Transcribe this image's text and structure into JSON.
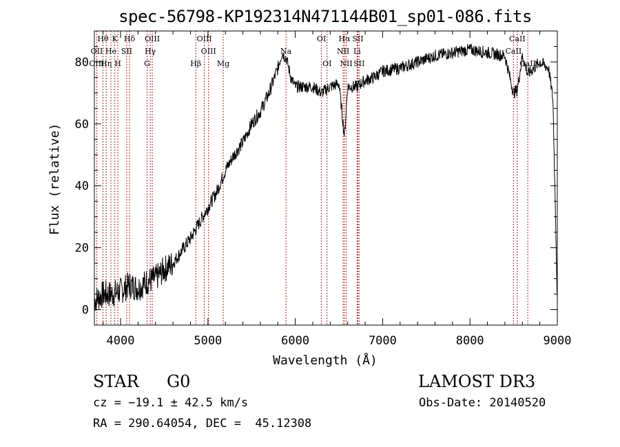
{
  "chart_data": {
    "type": "line",
    "title": "spec-56798-KP192314N471144B01_sp01-086.fits",
    "xlabel": "Wavelength (Å)",
    "ylabel": "Flux (relative)",
    "xlim": [
      3700,
      9000
    ],
    "ylim": [
      -5,
      90
    ],
    "xticks": [
      4000,
      5000,
      6000,
      7000,
      8000,
      9000
    ],
    "yticks": [
      0,
      20,
      40,
      60,
      80
    ],
    "grid": false,
    "series": [
      {
        "name": "flux",
        "x": [
          3700,
          3800,
          3900,
          4000,
          4100,
          4200,
          4300,
          4400,
          4500,
          4600,
          4700,
          4800,
          4900,
          5000,
          5100,
          5200,
          5300,
          5400,
          5500,
          5600,
          5700,
          5800,
          5850,
          5900,
          5950,
          6000,
          6100,
          6200,
          6300,
          6400,
          6500,
          6563,
          6600,
          6700,
          6800,
          6900,
          7000,
          7200,
          7400,
          7600,
          7800,
          8000,
          8200,
          8400,
          8498,
          8542,
          8600,
          8662,
          8800,
          8900,
          8950,
          8980,
          9000
        ],
        "y": [
          3,
          5,
          5,
          6,
          8,
          7,
          9,
          10,
          13,
          15,
          19,
          23,
          28,
          33,
          38,
          45,
          50,
          54,
          60,
          64,
          70,
          78,
          83,
          81,
          75,
          72,
          72,
          72,
          70,
          72,
          73,
          56,
          72,
          72,
          74,
          75,
          77,
          78,
          80,
          82,
          83,
          84,
          83,
          82,
          70,
          71,
          82,
          76,
          80,
          78,
          68,
          30,
          2
        ]
      }
    ],
    "lines": [
      {
        "name": "Hθ",
        "wavelength": 3798,
        "row": 0
      },
      {
        "name": "OII",
        "wavelength": 3727,
        "row": 1
      },
      {
        "name": "OIII",
        "wavelength": 3727,
        "row": 2
      },
      {
        "name": "K",
        "wavelength": 3934,
        "row": 0
      },
      {
        "name": "He",
        "wavelength": 3889,
        "row": 1
      },
      {
        "name": "Hη",
        "wavelength": 3835,
        "row": 2
      },
      {
        "name": "SII",
        "wavelength": 4070,
        "row": 1
      },
      {
        "name": "H",
        "wavelength": 3969,
        "row": 2
      },
      {
        "name": "Hδ",
        "wavelength": 4102,
        "row": 0
      },
      {
        "name": "OIII",
        "wavelength": 4363,
        "row": 0
      },
      {
        "name": "Hγ",
        "wavelength": 4340,
        "row": 1
      },
      {
        "name": "G",
        "wavelength": 4304,
        "row": 2
      },
      {
        "name": "OIII",
        "wavelength": 4959,
        "row": 0
      },
      {
        "name": "OIII",
        "wavelength": 5007,
        "row": 1
      },
      {
        "name": "Hβ",
        "wavelength": 4861,
        "row": 2
      },
      {
        "name": "Mg",
        "wavelength": 5175,
        "row": 2
      },
      {
        "name": "Na",
        "wavelength": 5893,
        "row": 1
      },
      {
        "name": "OI",
        "wavelength": 6300,
        "row": 0
      },
      {
        "name": "OI",
        "wavelength": 6364,
        "row": 2
      },
      {
        "name": "Hα",
        "wavelength": 6563,
        "row": 0
      },
      {
        "name": "SII",
        "wavelength": 6717,
        "row": 0
      },
      {
        "name": "NII",
        "wavelength": 6548,
        "row": 1
      },
      {
        "name": "Li",
        "wavelength": 6708,
        "row": 1
      },
      {
        "name": "NII",
        "wavelength": 6583,
        "row": 2
      },
      {
        "name": "SII",
        "wavelength": 6731,
        "row": 2
      },
      {
        "name": "CaII",
        "wavelength": 8542,
        "row": 0
      },
      {
        "name": "CaII",
        "wavelength": 8498,
        "row": 1
      },
      {
        "name": "CaII",
        "wavelength": 8662,
        "row": 2
      }
    ]
  },
  "info": {
    "class_type": "STAR",
    "subclass": "G0",
    "survey": "LAMOST DR3",
    "cz": "cz = −19.1 ± 42.5 km/s",
    "obs_date": "Obs-Date: 20140520",
    "radec": "RA = 290.64054, DEC =  45.12308"
  },
  "colors": {
    "line_marker": "#b22222",
    "spectrum": "#000000"
  }
}
